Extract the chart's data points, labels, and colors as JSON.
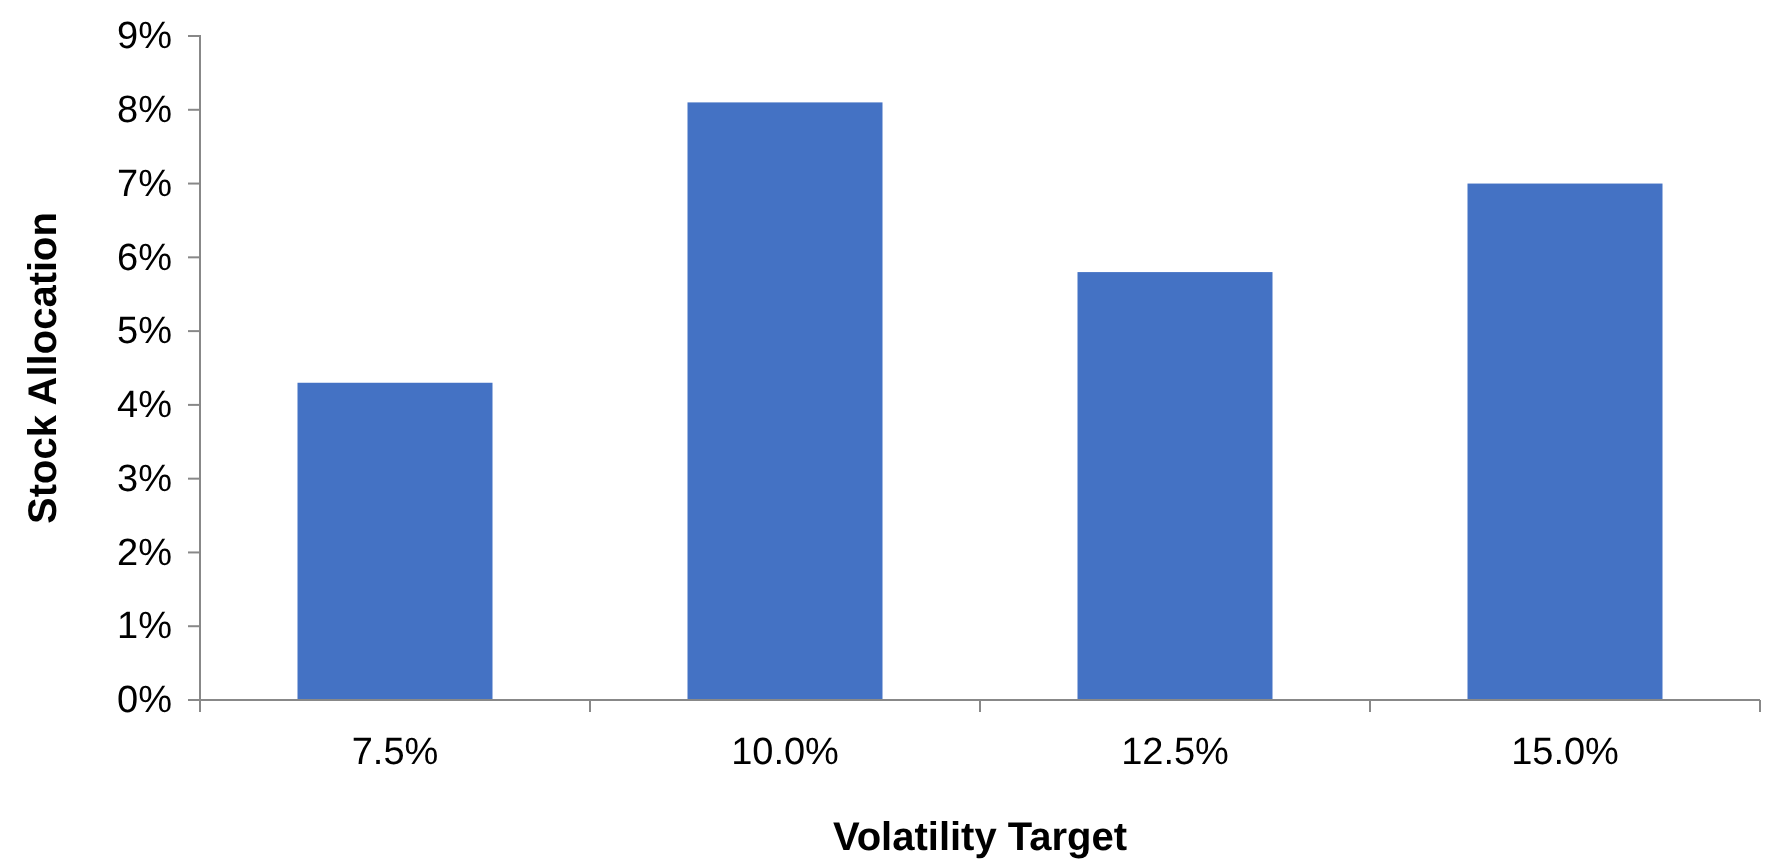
{
  "chart_data": {
    "type": "bar",
    "xlabel": "Volatility Target",
    "ylabel": "Stock Allocation",
    "categories": [
      "7.5%",
      "10.0%",
      "12.5%",
      "15.0%"
    ],
    "values": [
      4.3,
      8.1,
      5.8,
      7.0
    ],
    "color": "#4472c4",
    "ylim": [
      0,
      9
    ],
    "yticks": [
      {
        "value": 0,
        "label": "0%"
      },
      {
        "value": 1,
        "label": "1%"
      },
      {
        "value": 2,
        "label": "2%"
      },
      {
        "value": 3,
        "label": "3%"
      },
      {
        "value": 4,
        "label": "4%"
      },
      {
        "value": 5,
        "label": "5%"
      },
      {
        "value": 6,
        "label": "6%"
      },
      {
        "value": 7,
        "label": "7%"
      },
      {
        "value": 8,
        "label": "8%"
      },
      {
        "value": 9,
        "label": "9%"
      }
    ],
    "grid": false
  }
}
